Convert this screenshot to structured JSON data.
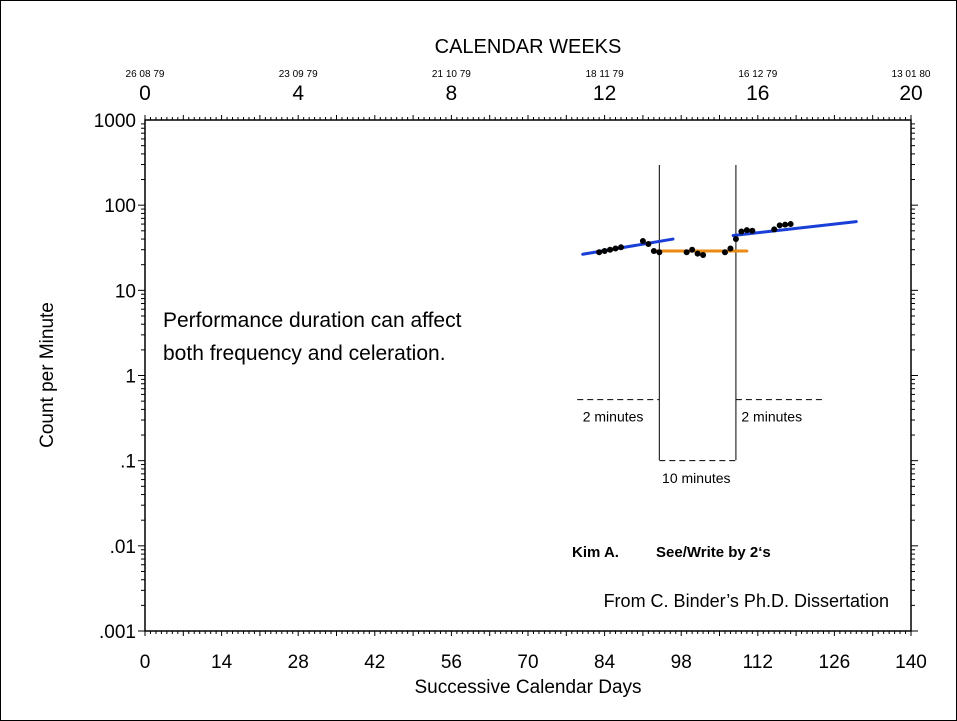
{
  "chart_data": {
    "type": "scatter",
    "chart_kind": "standard celeration chart",
    "y_scale": "log",
    "ylim": [
      0.001,
      1000
    ],
    "xlim": [
      0,
      140
    ],
    "xlabel": "Successive Calendar Days",
    "ylabel": "Count per Minute",
    "top_title": "CALENDAR WEEKS",
    "x_ticks": [
      "0",
      "14",
      "28",
      "42",
      "56",
      "70",
      "84",
      "98",
      "112",
      "126",
      "140"
    ],
    "y_ticks": [
      {
        "value": 1000,
        "label": "1000"
      },
      {
        "value": 100,
        "label": "100"
      },
      {
        "value": 10,
        "label": "10"
      },
      {
        "value": 1,
        "label": "1"
      },
      {
        "value": 0.1,
        "label": ".1"
      },
      {
        "value": 0.01,
        "label": ".01"
      },
      {
        "value": 0.001,
        "label": ".001"
      }
    ],
    "week_ticks": [
      {
        "week": 0,
        "label": "0",
        "date": "26 08 79"
      },
      {
        "week": 4,
        "label": "4",
        "date": "23 09 79"
      },
      {
        "week": 8,
        "label": "8",
        "date": "21 10 79"
      },
      {
        "week": 12,
        "label": "12",
        "date": "18 11 79"
      },
      {
        "week": 16,
        "label": "16",
        "date": "16 12 79"
      },
      {
        "week": 20,
        "label": "20",
        "date": "13 01 80"
      }
    ],
    "points": [
      {
        "x": 83,
        "y": 28
      },
      {
        "x": 84,
        "y": 29
      },
      {
        "x": 85,
        "y": 30
      },
      {
        "x": 86,
        "y": 31
      },
      {
        "x": 87,
        "y": 32
      },
      {
        "x": 91,
        "y": 38
      },
      {
        "x": 92,
        "y": 35
      },
      {
        "x": 93,
        "y": 29
      },
      {
        "x": 94,
        "y": 28
      },
      {
        "x": 99,
        "y": 28
      },
      {
        "x": 100,
        "y": 30
      },
      {
        "x": 101,
        "y": 27
      },
      {
        "x": 102,
        "y": 26
      },
      {
        "x": 106,
        "y": 28
      },
      {
        "x": 107,
        "y": 31
      },
      {
        "x": 108,
        "y": 40
      },
      {
        "x": 109,
        "y": 49
      },
      {
        "x": 110,
        "y": 51
      },
      {
        "x": 111,
        "y": 50
      },
      {
        "x": 115,
        "y": 52
      },
      {
        "x": 116,
        "y": 58
      },
      {
        "x": 117,
        "y": 59
      },
      {
        "x": 118,
        "y": 60
      }
    ],
    "celeration_lines": [
      {
        "x1": 80,
        "y1": 26.5,
        "x2": 96.5,
        "y2": 40,
        "color": "#1a3fd6"
      },
      {
        "x1": 93.5,
        "y1": 29,
        "x2": 110,
        "y2": 29,
        "color": "#e98a12"
      },
      {
        "x1": 107.5,
        "y1": 44,
        "x2": 130,
        "y2": 64,
        "color": "#1a3fd6"
      }
    ],
    "phase_lines": [
      94,
      108
    ],
    "duration_annotations": [
      {
        "x1": 79,
        "x2": 94,
        "y": 0.52,
        "label": "2 minutes",
        "label_x": 80,
        "label_y": 0.29
      },
      {
        "x1": 94,
        "x2": 108,
        "y": 0.1,
        "label": "10 minutes",
        "label_x": 94.5,
        "label_y": 0.055
      },
      {
        "x1": 108,
        "x2": 124,
        "y": 0.52,
        "label": "2 minutes",
        "label_x": 109,
        "label_y": 0.29
      }
    ],
    "annotations": {
      "note_line1": "Performance duration can affect",
      "note_line2": "both frequency and celeration.",
      "learner": "Kim A.",
      "task": "See/Write by 2‘s",
      "source": "From C. Binder’s Ph.D. Dissertation"
    },
    "grid": false
  }
}
